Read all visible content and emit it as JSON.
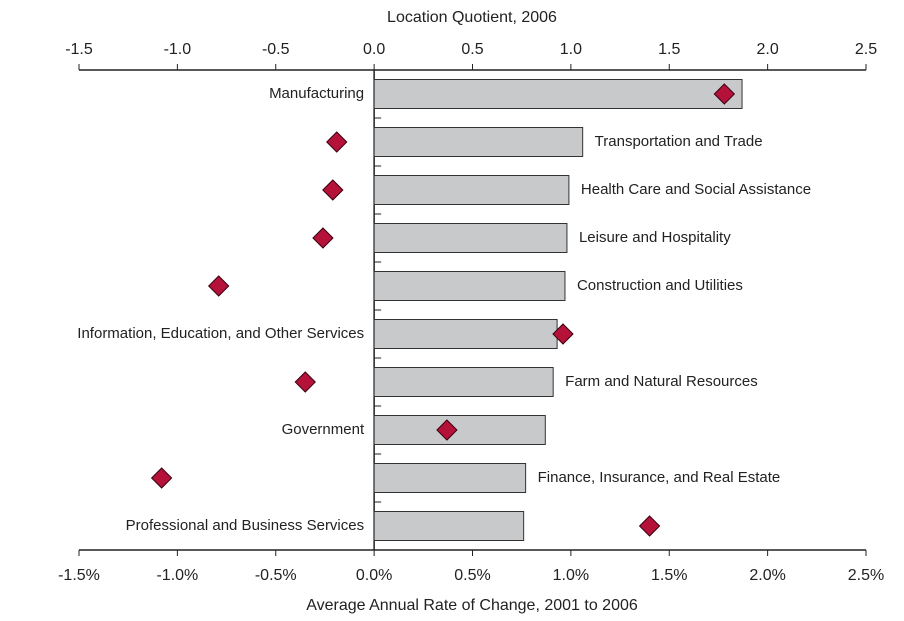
{
  "chart_data": {
    "type": "bar",
    "x2label": "Location Quotient, 2006",
    "xlabel": "Average Annual Rate of Change, 2001 to 2006",
    "categories": [
      "Manufacturing",
      "Transportation and Trade",
      "Health Care and Social Assistance",
      "Leisure and Hospitality",
      "Construction and Utilities",
      "Information, Education, and Other Services",
      "Farm and Natural Resources",
      "Government",
      "Finance, Insurance, and Real Estate",
      "Professional and Business Services"
    ],
    "series": [
      {
        "type": "bar",
        "axis": "x2",
        "color": "#c8c9cb",
        "values": [
          1.87,
          1.06,
          0.99,
          0.98,
          0.97,
          0.93,
          0.91,
          0.87,
          0.77,
          0.76
        ]
      },
      {
        "type": "scatter",
        "axis": "x",
        "color": "#b5123a",
        "values": [
          1.78,
          -0.19,
          -0.21,
          -0.26,
          -0.79,
          0.96,
          -0.35,
          0.37,
          -1.08,
          1.4
        ]
      }
    ],
    "x2lim": [
      -1.5,
      2.5
    ],
    "x2ticks": [
      -1.5,
      {
        "value": -1,
        "label": "-1.0"
      },
      -0.5,
      {
        "value": 0,
        "label": "0.0"
      },
      0.5,
      {
        "value": 1,
        "label": "1.0"
      },
      1.5,
      {
        "value": 2,
        "label": "2.0"
      },
      2.5
    ],
    "xlim": [
      -1.5,
      2.5
    ],
    "xticks": [
      {
        "value": -1.5,
        "label": "-1.5%"
      },
      {
        "value": -1,
        "label": "-1.0%"
      },
      {
        "value": -0.5,
        "label": "-0.5%"
      },
      {
        "value": 0,
        "label": "0.0%"
      },
      {
        "value": 0.5,
        "label": "0.5%"
      },
      {
        "value": 1,
        "label": "1.0%"
      },
      {
        "value": 1.5,
        "label": "1.5%"
      },
      {
        "value": 2,
        "label": "2.0%"
      },
      {
        "value": 2.5,
        "label": "2.5%"
      }
    ]
  }
}
